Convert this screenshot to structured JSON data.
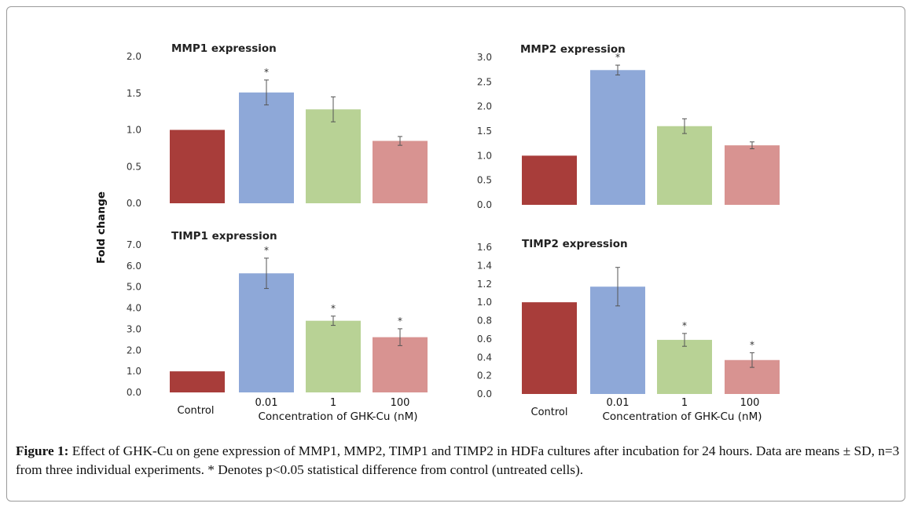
{
  "figure": {
    "y_axis_label": "Fold change",
    "caption_label": "Figure 1:",
    "caption_text": "Effect of GHK-Cu on gene expression of MMP1, MMP2, TIMP1 and TIMP2 in HDFa cultures after incubation for 24 hours. Data are means ± SD, n=3 from three individual experiments. * Denotes p<0.05 statistical difference from control (untreated cells)."
  },
  "colors": {
    "control": "#a83d3a",
    "c001": "#8ea8d8",
    "c1": "#b8d295",
    "c100": "#d89391",
    "errorbar": "#555555"
  },
  "chart_data": [
    {
      "type": "bar",
      "title": "MMP1 expression",
      "categories": [
        "Control",
        "0.01",
        "1",
        "100"
      ],
      "values": [
        1.0,
        1.51,
        1.28,
        0.85
      ],
      "errors": [
        0,
        0.17,
        0.17,
        0.06
      ],
      "significant": [
        false,
        true,
        false,
        false
      ],
      "ylim": [
        0,
        2.0
      ],
      "yticks": [
        "0.0",
        "0.5",
        "1.0",
        "1.5",
        "2.0"
      ],
      "show_category_labels": false,
      "xlabel": ""
    },
    {
      "type": "bar",
      "title": "MMP2 expression",
      "categories": [
        "Control",
        "0.01",
        "1",
        "100"
      ],
      "values": [
        1.0,
        2.74,
        1.6,
        1.21
      ],
      "errors": [
        0,
        0.1,
        0.15,
        0.07
      ],
      "significant": [
        false,
        true,
        false,
        false
      ],
      "ylim": [
        0,
        3.0
      ],
      "yticks": [
        "0.0",
        "0.5",
        "1.0",
        "1.5",
        "2.0",
        "2.5",
        "3.0"
      ],
      "show_category_labels": false,
      "xlabel": ""
    },
    {
      "type": "bar",
      "title": "TIMP1 expression",
      "categories": [
        "Control",
        "0.01",
        "1",
        "100"
      ],
      "values": [
        1.0,
        5.65,
        3.4,
        2.62
      ],
      "errors": [
        0,
        0.72,
        0.22,
        0.4
      ],
      "significant": [
        false,
        true,
        true,
        true
      ],
      "ylim": [
        0,
        7.0
      ],
      "yticks": [
        "0.0",
        "1.0",
        "2.0",
        "3.0",
        "4.0",
        "5.0",
        "6.0",
        "7.0"
      ],
      "show_category_labels": true,
      "xlabel": "Concentration of GHK-Cu (nM)"
    },
    {
      "type": "bar",
      "title": "TIMP2 expression",
      "categories": [
        "Control",
        "0.01",
        "1",
        "100"
      ],
      "values": [
        1.0,
        1.17,
        0.59,
        0.37
      ],
      "errors": [
        0,
        0.21,
        0.07,
        0.08
      ],
      "significant": [
        false,
        false,
        true,
        true
      ],
      "ylim": [
        0,
        1.6
      ],
      "yticks": [
        "0.0",
        "0.2",
        "0.4",
        "0.6",
        "0.8",
        "1.0",
        "1.2",
        "1.4",
        "1.6"
      ],
      "show_category_labels": true,
      "xlabel": "Concentration of GHK-Cu (nM)"
    }
  ]
}
